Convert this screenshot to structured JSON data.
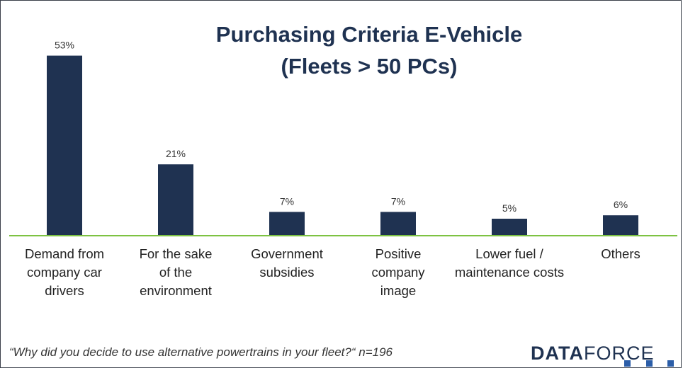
{
  "chart_data": {
    "type": "bar",
    "title": [
      "Purchasing Criteria E-Vehicle",
      "(Fleets > 50 PCs)"
    ],
    "categories": [
      [
        "Demand from",
        "company car",
        "drivers"
      ],
      [
        "For the sake",
        "of the",
        "environment"
      ],
      [
        "Government",
        "subsidies"
      ],
      [
        "Positive",
        "company",
        "image"
      ],
      [
        "Lower fuel /",
        "maintenance costs"
      ],
      [
        "Others"
      ]
    ],
    "values": [
      53,
      21,
      7,
      7,
      5,
      6
    ],
    "value_labels": [
      "53%",
      "21%",
      "7%",
      "7%",
      "5%",
      "6%"
    ],
    "xlabel": "",
    "ylabel": "",
    "ylim": [
      0,
      60
    ],
    "grid": false,
    "bar_color": "#1f3251",
    "baseline_color": "#7dc242"
  },
  "footnote": "“Why did you decide to use alternative powertrains in your fleet?“ n=196",
  "logo": {
    "bold": "DATA",
    "light": "FORCE"
  }
}
